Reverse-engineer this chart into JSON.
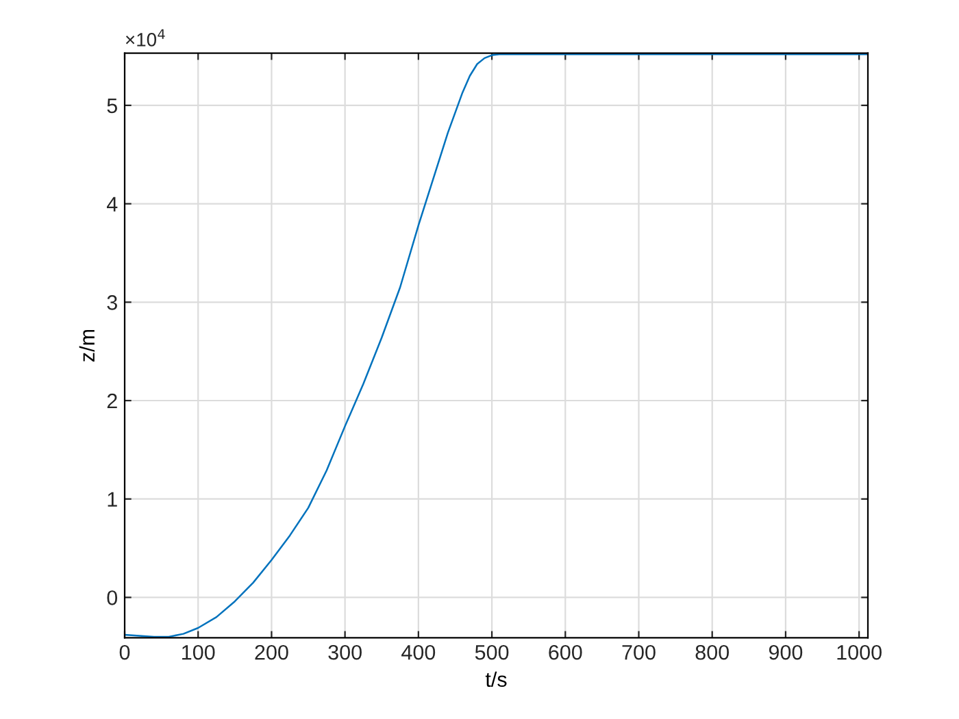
{
  "chart_data": {
    "type": "line",
    "xlabel": "t/s",
    "ylabel": "z/m",
    "annotations": [
      "×10$^{4}$"
    ],
    "x": [
      0,
      20,
      40,
      60,
      80,
      100,
      125,
      150,
      175,
      200,
      225,
      250,
      275,
      300,
      325,
      350,
      375,
      400,
      420,
      440,
      460,
      470,
      480,
      490,
      500,
      510,
      520,
      1012
    ],
    "series": [
      {
        "color": "#0072bd",
        "values": [
          -0.38,
          -0.39,
          -0.4,
          -0.4,
          -0.37,
          -0.31,
          -0.2,
          -0.04,
          0.15,
          0.38,
          0.63,
          0.91,
          1.29,
          1.74,
          2.17,
          2.64,
          3.15,
          3.78,
          4.25,
          4.72,
          5.13,
          5.3,
          5.42,
          5.48,
          5.51,
          5.52,
          5.52,
          5.52
        ]
      }
    ],
    "xlim": [
      0,
      1012
    ],
    "ylim": [
      -0.41,
      5.53
    ],
    "xticks": [
      0,
      100,
      200,
      300,
      400,
      500,
      600,
      700,
      800,
      900,
      1000
    ],
    "yticks": [
      0,
      1,
      2,
      3,
      4,
      5
    ],
    "grid": true,
    "marker": "none",
    "line_style": "solid"
  }
}
